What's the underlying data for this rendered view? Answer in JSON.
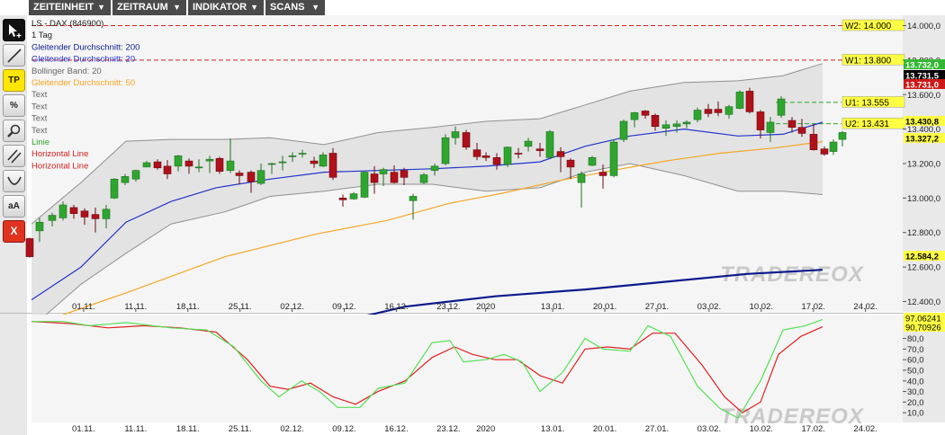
{
  "menu": [
    {
      "label": "ZEITEINHEIT"
    },
    {
      "label": "ZEITRAUM"
    },
    {
      "label": "INDIKATOR"
    },
    {
      "label": "SCANS"
    }
  ],
  "menu_arrow": "▼",
  "tools": [
    {
      "name": "select-pointer-icon",
      "label": ""
    },
    {
      "name": "trendline-icon",
      "label": ""
    },
    {
      "name": "tp-tool-button",
      "label": "TP"
    },
    {
      "name": "percent-icon",
      "label": "%"
    },
    {
      "name": "zoom-icon",
      "label": ""
    },
    {
      "name": "parallel-lines-icon",
      "label": ""
    },
    {
      "name": "arc-icon",
      "label": ""
    },
    {
      "name": "text-size-icon",
      "label": "aA"
    },
    {
      "name": "delete-icon",
      "label": "X"
    }
  ],
  "colors": {
    "up": "#2ea62e",
    "down": "#b0101a",
    "sma200": "#0d1a8c",
    "sma20": "#2233cc",
    "sma50": "#f5a623",
    "bollinger": "#909090",
    "stoch_k": "#55e055",
    "stoch_d": "#e02020",
    "hline": "#d42020",
    "support": "#2ea62e"
  },
  "chart_data": {
    "type": "candlestick",
    "watermark": "TRADEREOX",
    "legend": [
      {
        "text": "LS - DAX (846900)",
        "color": "#222222"
      },
      {
        "text": "1 Tag",
        "color": "#222222"
      },
      {
        "text": "Gleitender Durchschnitt: 200",
        "color": "#0d1a8c"
      },
      {
        "text": "Gleitender Durchschnitt: 20",
        "color": "#2233cc"
      },
      {
        "text": "Bollinger Band: 20",
        "color": "#666666"
      },
      {
        "text": "Gleitender Durchschnitt: 50",
        "color": "#f5a623"
      },
      {
        "text": "Text",
        "color": "#666666"
      },
      {
        "text": "Text",
        "color": "#666666"
      },
      {
        "text": "Text",
        "color": "#666666"
      },
      {
        "text": "Text",
        "color": "#666666"
      },
      {
        "text": "Linie",
        "color": "#2ea62e"
      },
      {
        "text": "Horizontal Line",
        "color": "#d42020"
      },
      {
        "text": "Horizontal Line",
        "color": "#d42020"
      }
    ],
    "price_ylim": [
      12340,
      14060
    ],
    "price_ticks": [
      "14.000,0",
      "13.800,0",
      "13.600,0",
      "13.400,0",
      "13.200,0",
      "13.000,0",
      "12.800,0",
      "12.600,0",
      "12.400,0"
    ],
    "price_tick_values": [
      14000,
      13800,
      13600,
      13400,
      13200,
      13000,
      12800,
      12600,
      12400
    ],
    "x_labels": [
      "01.11.",
      "11.11.",
      "18.11.",
      "25.11.",
      "02.12.",
      "09.12.",
      "16.12.",
      "23.12.",
      "2020",
      "13.01.",
      "20.01.",
      "27.01.",
      "03.02.",
      "10.02.",
      "17.02.",
      "24.02."
    ],
    "x_label_index": [
      7,
      14,
      21,
      28,
      35,
      42,
      49,
      56,
      61,
      70,
      77,
      84,
      91,
      98,
      105,
      112
    ],
    "x_range": [
      0,
      117
    ],
    "candles": [
      [
        0,
        12765,
        12770,
        12655,
        12660
      ],
      [
        1,
        12810,
        12885,
        12745,
        12860
      ],
      [
        2,
        12870,
        12915,
        12835,
        12900
      ],
      [
        3,
        12885,
        12980,
        12870,
        12960
      ],
      [
        4,
        12945,
        12960,
        12880,
        12910
      ],
      [
        5,
        12925,
        12940,
        12845,
        12890
      ],
      [
        6,
        12905,
        12945,
        12800,
        12880
      ],
      [
        7,
        12880,
        12960,
        12825,
        12935
      ],
      [
        8,
        13000,
        13115,
        12995,
        13110
      ],
      [
        9,
        13090,
        13140,
        13075,
        13125
      ],
      [
        10,
        13110,
        13165,
        13095,
        13160
      ],
      [
        11,
        13180,
        13215,
        13180,
        13205
      ],
      [
        12,
        13210,
        13225,
        13165,
        13175
      ],
      [
        13,
        13185,
        13220,
        13110,
        13140
      ],
      [
        14,
        13185,
        13250,
        13155,
        13245
      ],
      [
        15,
        13215,
        13230,
        13140,
        13185
      ],
      [
        16,
        13175,
        13225,
        13150,
        13180
      ],
      [
        17,
        13215,
        13245,
        13145,
        13225
      ],
      [
        18,
        13230,
        13240,
        13140,
        13155
      ],
      [
        19,
        13160,
        13345,
        13145,
        13215
      ],
      [
        20,
        13145,
        13160,
        13080,
        13130
      ],
      [
        21,
        13150,
        13160,
        13030,
        13095
      ],
      [
        22,
        13085,
        13200,
        13075,
        13160
      ],
      [
        23,
        13195,
        13205,
        13140,
        13200
      ],
      [
        24,
        13210,
        13245,
        13160,
        13210
      ],
      [
        25,
        13240,
        13265,
        13210,
        13245
      ],
      [
        26,
        13260,
        13280,
        13235,
        13260
      ],
      [
        27,
        13215,
        13240,
        13175,
        13200
      ],
      [
        28,
        13185,
        13265,
        13180,
        13250
      ],
      [
        29,
        13260,
        13290,
        13105,
        13120
      ],
      [
        30,
        13000,
        13020,
        12950,
        12990
      ],
      [
        31,
        12995,
        13035,
        12990,
        13025
      ],
      [
        32,
        13005,
        13155,
        13000,
        13150
      ],
      [
        33,
        13140,
        13185,
        13025,
        13090
      ],
      [
        34,
        13140,
        13175,
        13070,
        13165
      ],
      [
        35,
        13150,
        13190,
        13085,
        13090
      ],
      [
        36,
        13160,
        13175,
        13075,
        13120
      ],
      [
        37,
        12985,
        13025,
        12875,
        13010
      ],
      [
        38,
        13090,
        13145,
        13080,
        13135
      ],
      [
        39,
        13160,
        13200,
        13130,
        13185
      ],
      [
        40,
        13200,
        13370,
        13190,
        13350
      ],
      [
        41,
        13350,
        13415,
        13310,
        13385
      ],
      [
        42,
        13380,
        13395,
        13280,
        13295
      ],
      [
        43,
        13280,
        13320,
        13220,
        13240
      ],
      [
        44,
        13245,
        13265,
        13215,
        13235
      ],
      [
        45,
        13235,
        13260,
        13165,
        13195
      ],
      [
        46,
        13195,
        13300,
        13180,
        13295
      ],
      [
        47,
        13260,
        13290,
        13230,
        13255
      ],
      [
        48,
        13300,
        13350,
        13270,
        13330
      ],
      [
        49,
        13285,
        13320,
        13240,
        13275
      ],
      [
        50,
        13235,
        13395,
        13230,
        13385
      ],
      [
        51,
        13270,
        13295,
        13150,
        13240
      ],
      [
        52,
        13220,
        13230,
        13110,
        13180
      ],
      [
        53,
        13090,
        13155,
        12945,
        13140
      ],
      [
        54,
        13190,
        13245,
        13185,
        13235
      ],
      [
        55,
        13150,
        13195,
        13055,
        13130
      ],
      [
        56,
        13130,
        13340,
        13120,
        13325
      ],
      [
        57,
        13340,
        13455,
        13325,
        13445
      ],
      [
        58,
        13455,
        13500,
        13410,
        13495
      ],
      [
        59,
        13505,
        13510,
        13460,
        13480
      ],
      [
        60,
        13480,
        13490,
        13390,
        13415
      ],
      [
        61,
        13405,
        13450,
        13360,
        13425
      ],
      [
        62,
        13415,
        13450,
        13380,
        13430
      ],
      [
        63,
        13430,
        13450,
        13405,
        13440
      ],
      [
        64,
        13455,
        13525,
        13440,
        13510
      ],
      [
        65,
        13515,
        13545,
        13470,
        13490
      ],
      [
        66,
        13515,
        13560,
        13475,
        13495
      ],
      [
        67,
        13485,
        13540,
        13460,
        13530
      ],
      [
        68,
        13520,
        13625,
        13515,
        13615
      ],
      [
        69,
        13620,
        13640,
        13490,
        13500
      ],
      [
        70,
        13500,
        13510,
        13345,
        13395
      ],
      [
        71,
        13380,
        13470,
        13325,
        13440
      ],
      [
        72,
        13480,
        13590,
        13465,
        13575
      ],
      [
        73,
        13450,
        13470,
        13380,
        13410
      ],
      [
        74,
        13410,
        13460,
        13355,
        13375
      ],
      [
        75,
        13370,
        13430,
        13275,
        13280
      ],
      [
        76,
        13285,
        13300,
        13245,
        13255
      ],
      [
        77,
        13270,
        13340,
        13250,
        13325
      ],
      [
        78,
        13340,
        13390,
        13300,
        13380
      ]
    ],
    "candle_x": [
      33,
      44,
      58,
      70,
      82,
      94,
      106,
      118,
      127,
      139,
      151,
      163,
      175,
      186,
      198,
      210,
      221,
      233,
      244,
      256,
      266,
      279,
      290,
      302,
      314,
      325,
      336,
      349,
      359,
      370,
      381,
      393,
      405,
      416,
      426,
      438,
      449,
      459,
      471,
      483,
      495,
      506,
      518,
      530,
      540,
      552,
      564,
      576,
      587,
      600,
      611,
      623,
      634,
      646,
      658,
      670,
      682,
      693,
      705,
      717,
      728,
      740,
      752,
      763,
      775,
      787,
      798,
      810,
      822,
      833,
      845,
      856,
      868,
      880,
      891,
      904,
      916,
      926,
      936
    ],
    "sma20": [
      [
        35,
        12410
      ],
      [
        90,
        12600
      ],
      [
        140,
        12860
      ],
      [
        190,
        12980
      ],
      [
        240,
        13060
      ],
      [
        300,
        13110
      ],
      [
        360,
        13150
      ],
      [
        420,
        13160
      ],
      [
        480,
        13170
      ],
      [
        540,
        13185
      ],
      [
        600,
        13210
      ],
      [
        650,
        13300
      ],
      [
        700,
        13360
      ],
      [
        760,
        13400
      ],
      [
        820,
        13360
      ],
      [
        870,
        13370
      ],
      [
        914,
        13440
      ]
    ],
    "sma50": [
      [
        35,
        12260
      ],
      [
        140,
        12450
      ],
      [
        250,
        12660
      ],
      [
        350,
        12790
      ],
      [
        430,
        12870
      ],
      [
        500,
        12970
      ],
      [
        560,
        13030
      ],
      [
        620,
        13100
      ],
      [
        680,
        13160
      ],
      [
        740,
        13215
      ],
      [
        800,
        13260
      ],
      [
        860,
        13290
      ],
      [
        914,
        13327
      ]
    ],
    "sma200": [
      [
        360,
        12260
      ],
      [
        450,
        12370
      ],
      [
        550,
        12430
      ],
      [
        650,
        12470
      ],
      [
        750,
        12520
      ],
      [
        830,
        12560
      ],
      [
        914,
        12584
      ]
    ],
    "bb_upper": [
      [
        35,
        12850
      ],
      [
        90,
        13090
      ],
      [
        140,
        13330
      ],
      [
        190,
        13340
      ],
      [
        250,
        13340
      ],
      [
        300,
        13350
      ],
      [
        360,
        13310
      ],
      [
        420,
        13380
      ],
      [
        480,
        13410
      ],
      [
        540,
        13445
      ],
      [
        600,
        13460
      ],
      [
        650,
        13540
      ],
      [
        700,
        13620
      ],
      [
        760,
        13670
      ],
      [
        820,
        13680
      ],
      [
        870,
        13710
      ],
      [
        914,
        13780
      ]
    ],
    "bb_lower": [
      [
        35,
        12250
      ],
      [
        90,
        12500
      ],
      [
        140,
        12680
      ],
      [
        190,
        12850
      ],
      [
        250,
        12920
      ],
      [
        300,
        13010
      ],
      [
        360,
        13040
      ],
      [
        420,
        13080
      ],
      [
        480,
        13080
      ],
      [
        540,
        13040
      ],
      [
        600,
        13060
      ],
      [
        650,
        13150
      ],
      [
        700,
        13200
      ],
      [
        760,
        13130
      ],
      [
        820,
        13040
      ],
      [
        870,
        13040
      ],
      [
        914,
        13020
      ]
    ],
    "hlines": [
      {
        "label": "W2: 14.000",
        "value": 14000,
        "color": "#d42020"
      },
      {
        "label": "W1: 13.800",
        "value": 13800,
        "color": "#d42020"
      },
      {
        "label": "U1: 13.555",
        "value": 13555,
        "color": "#2ea62e"
      },
      {
        "label": "U2: 13.431",
        "value": 13431,
        "color": "#2ea62e"
      }
    ],
    "price_tags": [
      {
        "label": "13.732,0",
        "value": 13732,
        "bg": "#33b833",
        "fg": "#ffffff"
      },
      {
        "label": "13.731,5",
        "value": 13731.5,
        "bg": "#000000",
        "fg": "#ffffff"
      },
      {
        "label": "13.731,0",
        "value": 13731,
        "bg": "#cc1a1a",
        "fg": "#ffffff"
      },
      {
        "label": "13.430,8",
        "value": 13430.8,
        "bg": "#ffff44",
        "fg": "#000000"
      },
      {
        "label": "13.327,2",
        "value": 13327.2,
        "bg": "#ffff44",
        "fg": "#000000"
      },
      {
        "label": "12.584,2",
        "value": 12584.2,
        "bg": "#ffff44",
        "fg": "#000000"
      }
    ],
    "stoch_ylim": [
      0,
      100
    ],
    "stoch_ticks": [
      "80,0",
      "70,0",
      "60,0",
      "50,0",
      "40,0",
      "30,0",
      "20,0",
      "10,0"
    ],
    "stoch_tick_values": [
      80,
      70,
      60,
      50,
      40,
      30,
      20,
      10
    ],
    "stoch_tags": [
      {
        "label": "97,06241",
        "value": 97.06,
        "bg": "#ffff44",
        "fg": "#000000"
      },
      {
        "label": "90,70926",
        "value": 90.71,
        "bg": "#ffff44",
        "fg": "#000000"
      }
    ],
    "stoch_k": [
      [
        35,
        96
      ],
      [
        70,
        96
      ],
      [
        100,
        92
      ],
      [
        140,
        95
      ],
      [
        190,
        90
      ],
      [
        230,
        88
      ],
      [
        260,
        72
      ],
      [
        290,
        40
      ],
      [
        310,
        25
      ],
      [
        335,
        40
      ],
      [
        355,
        30
      ],
      [
        375,
        15
      ],
      [
        400,
        15
      ],
      [
        420,
        33
      ],
      [
        450,
        38
      ],
      [
        480,
        76
      ],
      [
        500,
        78
      ],
      [
        515,
        58
      ],
      [
        540,
        60
      ],
      [
        560,
        65
      ],
      [
        580,
        58
      ],
      [
        600,
        30
      ],
      [
        625,
        48
      ],
      [
        650,
        80
      ],
      [
        670,
        70
      ],
      [
        700,
        68
      ],
      [
        720,
        92
      ],
      [
        745,
        82
      ],
      [
        775,
        35
      ],
      [
        800,
        14
      ],
      [
        820,
        5
      ],
      [
        845,
        40
      ],
      [
        870,
        88
      ],
      [
        895,
        92
      ],
      [
        914,
        98
      ]
    ],
    "stoch_d": [
      [
        35,
        96
      ],
      [
        80,
        94
      ],
      [
        120,
        90
      ],
      [
        160,
        92
      ],
      [
        200,
        90
      ],
      [
        240,
        86
      ],
      [
        275,
        60
      ],
      [
        300,
        35
      ],
      [
        320,
        32
      ],
      [
        345,
        38
      ],
      [
        370,
        25
      ],
      [
        395,
        18
      ],
      [
        420,
        30
      ],
      [
        450,
        40
      ],
      [
        480,
        62
      ],
      [
        505,
        72
      ],
      [
        525,
        65
      ],
      [
        550,
        60
      ],
      [
        575,
        60
      ],
      [
        600,
        45
      ],
      [
        625,
        38
      ],
      [
        650,
        70
      ],
      [
        675,
        72
      ],
      [
        700,
        70
      ],
      [
        725,
        85
      ],
      [
        750,
        85
      ],
      [
        780,
        55
      ],
      [
        805,
        25
      ],
      [
        825,
        10
      ],
      [
        845,
        20
      ],
      [
        865,
        65
      ],
      [
        890,
        82
      ],
      [
        914,
        91
      ]
    ]
  }
}
